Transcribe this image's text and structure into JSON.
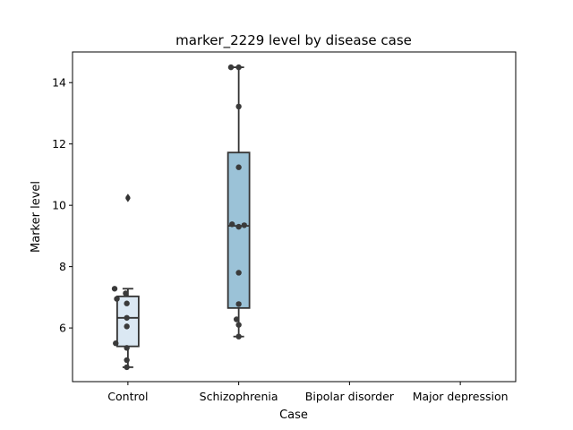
{
  "chart_data": {
    "type": "box",
    "title": "marker_2229 level by disease case",
    "xlabel": "Case",
    "ylabel": "Marker level",
    "categories": [
      "Control",
      "Schizophrenia",
      "Bipolar disorder",
      "Major depression"
    ],
    "ylim": [
      4.25,
      15.0
    ],
    "yticks": [
      6,
      8,
      10,
      12,
      14
    ],
    "grid": false,
    "legend": "none",
    "box_colors": [
      "#dbe8f3",
      "#9bc2d7"
    ],
    "edge_color": "#333333",
    "point_color": "#3a3a3a",
    "boxes": [
      {
        "category": "Control",
        "q1": 5.4,
        "median": 6.33,
        "q3": 7.03,
        "whisker_low": 4.72,
        "whisker_high": 7.28,
        "outliers": [
          10.22,
          10.26
        ]
      },
      {
        "category": "Schizophrenia",
        "q1": 6.65,
        "median": 9.33,
        "q3": 11.72,
        "whisker_low": 5.72,
        "whisker_high": 14.5,
        "outliers": []
      },
      {
        "category": "Bipolar disorder",
        "empty": true
      },
      {
        "category": "Major depression",
        "empty": true
      }
    ],
    "points": [
      {
        "category": "Control",
        "values": [
          7.28,
          7.13,
          6.95,
          6.8,
          6.33,
          6.05,
          5.5,
          5.35,
          4.95,
          4.72
        ],
        "offsets": [
          -0.12,
          -0.02,
          -0.1,
          -0.01,
          -0.01,
          -0.01,
          -0.11,
          -0.01,
          -0.01,
          -0.01
        ]
      },
      {
        "category": "Schizophrenia",
        "values": [
          14.5,
          14.5,
          13.22,
          11.24,
          9.38,
          9.35,
          9.3,
          7.8,
          6.78,
          6.28,
          6.1,
          5.72
        ],
        "offsets": [
          -0.07,
          0.0,
          0.0,
          0.0,
          -0.06,
          0.05,
          0.0,
          0.0,
          0.0,
          -0.02,
          0.0,
          0.0
        ]
      }
    ]
  }
}
